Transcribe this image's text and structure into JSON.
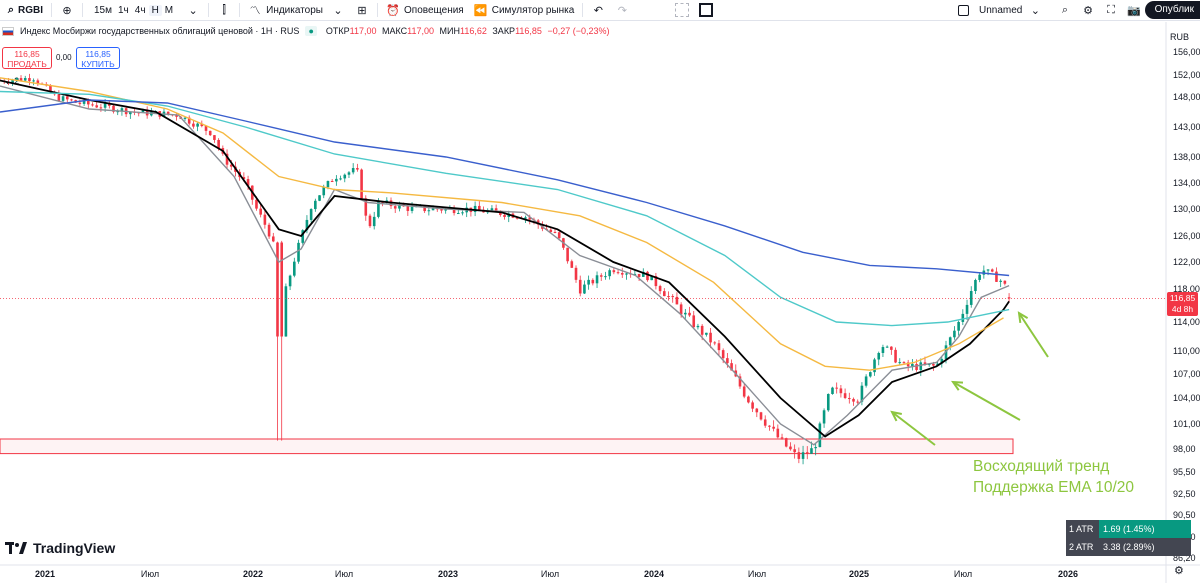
{
  "toolbar": {
    "symbol": "RGBI",
    "timeframes": [
      "15м",
      "1ч",
      "4ч",
      "Н",
      "М"
    ],
    "active_timeframe": "Н",
    "indicators_label": "Индикаторы",
    "alerts_label": "Оповещения",
    "replay_label": "Симулятор рынка",
    "layout_name": "Unnamed",
    "publish_label": "Опублик"
  },
  "legend": {
    "title": "Индекс Мосбиржи государственных облигаций ценовой · 1Н · RUS",
    "open_label": "ОТКР",
    "open": "117,00",
    "high_label": "МАКС",
    "high": "117,00",
    "low_label": "МИН",
    "low": "116,62",
    "close_label": "ЗАКР",
    "close": "116,85",
    "change": "−0,27 (−0,23%)",
    "indicator_count": "2"
  },
  "trade": {
    "sell_price": "116,85",
    "sell_label": "ПРОДАТЬ",
    "spread": "0,00",
    "buy_price": "116,85",
    "buy_label": "КУПИТЬ"
  },
  "price_axis": {
    "currency": "RUB",
    "last_price": "116,85",
    "countdown": "4d 8h"
  },
  "atr": [
    {
      "label": "1 ATR",
      "value": "1.69 (1.45%)",
      "color": "#089981"
    },
    {
      "label": "2 ATR",
      "value": "3.38 (2.89%)",
      "color": "#434651"
    }
  ],
  "logo_text": "TradingView",
  "annotation": {
    "line1": "Восходящий тренд",
    "line2": "Поддержка EMA 10/20",
    "color": "#8dc63f"
  },
  "chart_data": {
    "type": "candlestick",
    "title": "Индекс Мосбиржи государственных облигаций ценовой · 1Н · RUS",
    "y_ticks": [
      "156,00",
      "152,00",
      "148,00",
      "143,00",
      "138,00",
      "134,00",
      "130,00",
      "126,00",
      "122,00",
      "118,00",
      "114,00",
      "110,00",
      "107,00",
      "104,00",
      "101,00",
      "98,00",
      "95,50",
      "92,50",
      "90,50",
      "88,30",
      "86,20"
    ],
    "x_ticks": [
      "2021",
      "Июл",
      "2022",
      "Июл",
      "2023",
      "Июл",
      "2024",
      "Июл",
      "2025",
      "Июл",
      "2026"
    ],
    "ylim": [
      86.2,
      156
    ],
    "close_path": [
      [
        0,
        151
      ],
      [
        0.03,
        151.5
      ],
      [
        0.05,
        148
      ],
      [
        0.07,
        147
      ],
      [
        0.09,
        146.5
      ],
      [
        0.12,
        145.5
      ],
      [
        0.16,
        145
      ],
      [
        0.19,
        142
      ],
      [
        0.2,
        138
      ],
      [
        0.22,
        134
      ],
      [
        0.23,
        130
      ],
      [
        0.24,
        127
      ],
      [
        0.245,
        125
      ],
      [
        0.25,
        105
      ],
      [
        0.255,
        117
      ],
      [
        0.265,
        123
      ],
      [
        0.28,
        131
      ],
      [
        0.3,
        135
      ],
      [
        0.32,
        136
      ],
      [
        0.33,
        127
      ],
      [
        0.34,
        131
      ],
      [
        0.37,
        130
      ],
      [
        0.42,
        130
      ],
      [
        0.47,
        129
      ],
      [
        0.5,
        126
      ],
      [
        0.52,
        118
      ],
      [
        0.55,
        121
      ],
      [
        0.58,
        120
      ],
      [
        0.6,
        117
      ],
      [
        0.64,
        111
      ],
      [
        0.67,
        104
      ],
      [
        0.7,
        99
      ],
      [
        0.715,
        97
      ],
      [
        0.73,
        98
      ],
      [
        0.745,
        105
      ],
      [
        0.77,
        104
      ],
      [
        0.79,
        111
      ],
      [
        0.81,
        108
      ],
      [
        0.84,
        108
      ],
      [
        0.86,
        114
      ],
      [
        0.88,
        121
      ],
      [
        0.9,
        119
      ],
      [
        0.905,
        116.85
      ]
    ],
    "series": [
      {
        "name": "EMA 10",
        "color": "#8a8e96",
        "values": [
          [
            0,
            150
          ],
          [
            0.08,
            146
          ],
          [
            0.16,
            145
          ],
          [
            0.21,
            135
          ],
          [
            0.25,
            122
          ],
          [
            0.27,
            124
          ],
          [
            0.3,
            133
          ],
          [
            0.33,
            131
          ],
          [
            0.4,
            130
          ],
          [
            0.47,
            129.5
          ],
          [
            0.52,
            123
          ],
          [
            0.57,
            120
          ],
          [
            0.61,
            115
          ],
          [
            0.66,
            107
          ],
          [
            0.7,
            101
          ],
          [
            0.73,
            98.5
          ],
          [
            0.76,
            102
          ],
          [
            0.8,
            107.5
          ],
          [
            0.84,
            108.5
          ],
          [
            0.86,
            112
          ],
          [
            0.88,
            117
          ],
          [
            0.905,
            118.5
          ]
        ]
      },
      {
        "name": "EMA 20",
        "color": "#000000",
        "values": [
          [
            0,
            151
          ],
          [
            0.08,
            147.5
          ],
          [
            0.14,
            145.5
          ],
          [
            0.2,
            139
          ],
          [
            0.25,
            127
          ],
          [
            0.27,
            126
          ],
          [
            0.3,
            132
          ],
          [
            0.35,
            131
          ],
          [
            0.45,
            129.5
          ],
          [
            0.5,
            127
          ],
          [
            0.55,
            122
          ],
          [
            0.6,
            119
          ],
          [
            0.65,
            112
          ],
          [
            0.7,
            104
          ],
          [
            0.74,
            99.5
          ],
          [
            0.77,
            102
          ],
          [
            0.8,
            106
          ],
          [
            0.84,
            108
          ],
          [
            0.87,
            111
          ],
          [
            0.9,
            115.5
          ],
          [
            0.905,
            116.5
          ]
        ]
      },
      {
        "name": "EMA 50",
        "color": "#f5b942",
        "values": [
          [
            0,
            151.5
          ],
          [
            0.08,
            149
          ],
          [
            0.15,
            146
          ],
          [
            0.2,
            142
          ],
          [
            0.25,
            135
          ],
          [
            0.3,
            133
          ],
          [
            0.35,
            132.5
          ],
          [
            0.45,
            131
          ],
          [
            0.52,
            129
          ],
          [
            0.58,
            125
          ],
          [
            0.64,
            119
          ],
          [
            0.7,
            111
          ],
          [
            0.74,
            108
          ],
          [
            0.78,
            107.5
          ],
          [
            0.82,
            108.5
          ],
          [
            0.86,
            111
          ],
          [
            0.9,
            114.5
          ]
        ]
      },
      {
        "name": "EMA 100",
        "color": "#4ec9c9",
        "values": [
          [
            0,
            149
          ],
          [
            0.08,
            148.5
          ],
          [
            0.15,
            146.5
          ],
          [
            0.22,
            143
          ],
          [
            0.3,
            138.5
          ],
          [
            0.4,
            135.5
          ],
          [
            0.5,
            133
          ],
          [
            0.58,
            129
          ],
          [
            0.65,
            123
          ],
          [
            0.7,
            117
          ],
          [
            0.75,
            114
          ],
          [
            0.8,
            113.5
          ],
          [
            0.85,
            114
          ],
          [
            0.905,
            115.5
          ]
        ]
      },
      {
        "name": "EMA 200",
        "color": "#3a5fcd",
        "values": [
          [
            0,
            145.5
          ],
          [
            0.08,
            147.5
          ],
          [
            0.15,
            147
          ],
          [
            0.22,
            144
          ],
          [
            0.3,
            140.5
          ],
          [
            0.4,
            138
          ],
          [
            0.5,
            134.5
          ],
          [
            0.58,
            131
          ],
          [
            0.65,
            127.5
          ],
          [
            0.72,
            123.5
          ],
          [
            0.78,
            121.5
          ],
          [
            0.84,
            121
          ],
          [
            0.905,
            120
          ]
        ]
      }
    ],
    "zone": [
      97.5,
      99.2
    ],
    "last_value": 116.85
  }
}
